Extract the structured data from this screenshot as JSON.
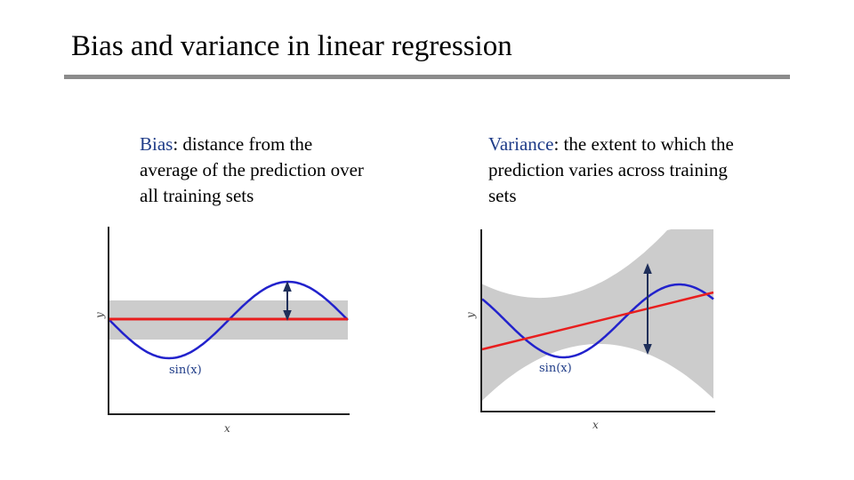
{
  "slide": {
    "title": "Bias and variance in linear regression"
  },
  "bias_panel": {
    "term": "Bias",
    "text": ": distance from the average of the prediction over all training sets",
    "y_label": "y",
    "x_label": "x",
    "curve_label": "sin(x)"
  },
  "variance_panel": {
    "term": "Variance",
    "text": ": the extent to which the prediction varies across training sets",
    "y_label": "y",
    "x_label": "x",
    "curve_label": "sin(x)"
  },
  "colors": {
    "true_function": "#2222cc",
    "prediction": "#e81e1e",
    "band": "#cccccc",
    "arrow": "#1f2f5a",
    "term": "#1f3c88"
  }
}
